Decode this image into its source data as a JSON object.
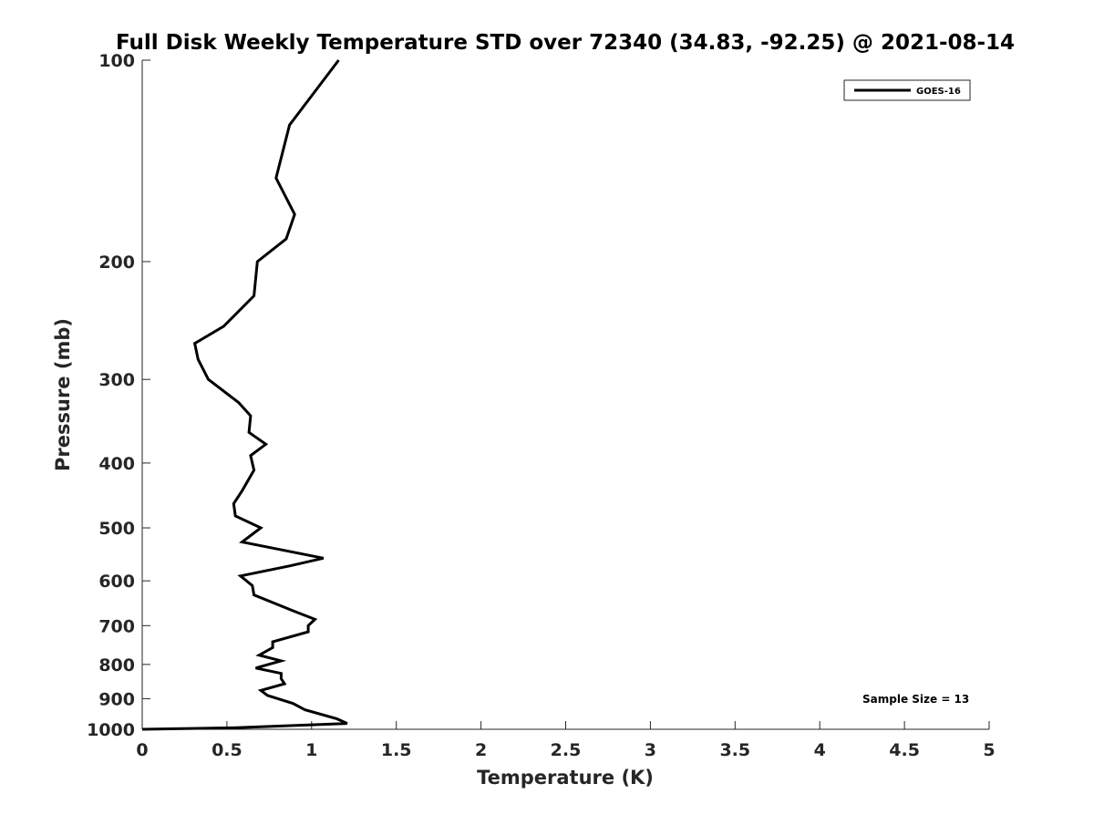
{
  "chart_data": {
    "type": "line",
    "title": "Full Disk Weekly Temperature STD over 72340 (34.83, -92.25) @ 2021-08-14",
    "xlabel": "Temperature (K)",
    "ylabel": "Pressure (mb)",
    "xlim": [
      0,
      5
    ],
    "ylim": [
      100,
      1000
    ],
    "y_scale": "log",
    "y_reversed": true,
    "x_ticks": [
      "0",
      "0.5",
      "1",
      "1.5",
      "2",
      "2.5",
      "3",
      "3.5",
      "4",
      "4.5",
      "5"
    ],
    "y_ticks": [
      "100",
      "200",
      "300",
      "400",
      "500",
      "600",
      "700",
      "800",
      "900",
      "1000"
    ],
    "grid": false,
    "legend_position": "top-right",
    "annotation": "Sample Size = 13",
    "series": [
      {
        "name": "GOES-16",
        "color": "#000000",
        "points": [
          [
            1.16,
            100
          ],
          [
            0.87,
            125
          ],
          [
            0.79,
            150
          ],
          [
            0.9,
            170
          ],
          [
            0.85,
            185
          ],
          [
            0.68,
            200
          ],
          [
            0.66,
            225
          ],
          [
            0.48,
            250
          ],
          [
            0.31,
            265
          ],
          [
            0.33,
            280
          ],
          [
            0.39,
            300
          ],
          [
            0.57,
            325
          ],
          [
            0.64,
            340
          ],
          [
            0.63,
            360
          ],
          [
            0.73,
            375
          ],
          [
            0.64,
            390
          ],
          [
            0.66,
            410
          ],
          [
            0.59,
            440
          ],
          [
            0.54,
            460
          ],
          [
            0.55,
            480
          ],
          [
            0.7,
            500
          ],
          [
            0.59,
            525
          ],
          [
            1.07,
            555
          ],
          [
            0.87,
            570
          ],
          [
            0.58,
            590
          ],
          [
            0.65,
            610
          ],
          [
            0.66,
            630
          ],
          [
            0.89,
            665
          ],
          [
            1.02,
            685
          ],
          [
            0.98,
            700
          ],
          [
            0.98,
            715
          ],
          [
            0.77,
            740
          ],
          [
            0.77,
            755
          ],
          [
            0.69,
            775
          ],
          [
            0.82,
            790
          ],
          [
            0.67,
            810
          ],
          [
            0.82,
            825
          ],
          [
            0.82,
            840
          ],
          [
            0.84,
            855
          ],
          [
            0.7,
            875
          ],
          [
            0.74,
            890
          ],
          [
            0.89,
            915
          ],
          [
            0.96,
            935
          ],
          [
            1.15,
            965
          ],
          [
            1.21,
            980
          ],
          [
            0.54,
            995
          ],
          [
            0.0,
            1000
          ]
        ]
      }
    ]
  }
}
